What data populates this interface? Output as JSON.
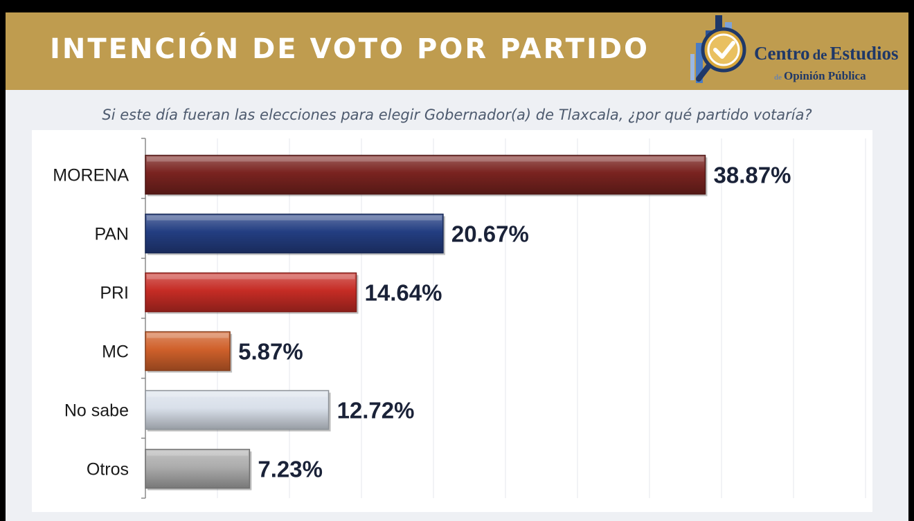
{
  "header": {
    "title": "INTENCIÓN DE VOTO POR PARTIDO",
    "logo_line1_big": "Centro",
    "logo_line1_small": "de",
    "logo_line1_big2": "Estudios",
    "logo_line2_small": "de",
    "logo_line2": "Opinión Pública"
  },
  "question": "Si este día fueran las elecciones para elegir Gobernador(a) de Tlaxcala, ¿por qué partido votaría?",
  "colors": {
    "banner": "#bf9c4f",
    "MORENA": "#7a2320",
    "PAN": "#233e82",
    "PRI": "#c62c25",
    "MC": "#d0612b",
    "No sabe": "#d9e0ea",
    "Otros": "#acacac"
  },
  "chart_data": {
    "type": "bar",
    "orientation": "horizontal",
    "categories": [
      "MORENA",
      "PAN",
      "PRI",
      "MC",
      "No sabe",
      "Otros"
    ],
    "values": [
      38.87,
      20.67,
      14.64,
      5.87,
      12.72,
      7.23
    ],
    "value_labels": [
      "38.87%",
      "20.67%",
      "14.64%",
      "5.87%",
      "12.72%",
      "7.23%"
    ],
    "title": "",
    "xlabel": "",
    "ylabel": "",
    "xlim": [
      0,
      50
    ],
    "grid": true,
    "legend": "none"
  }
}
